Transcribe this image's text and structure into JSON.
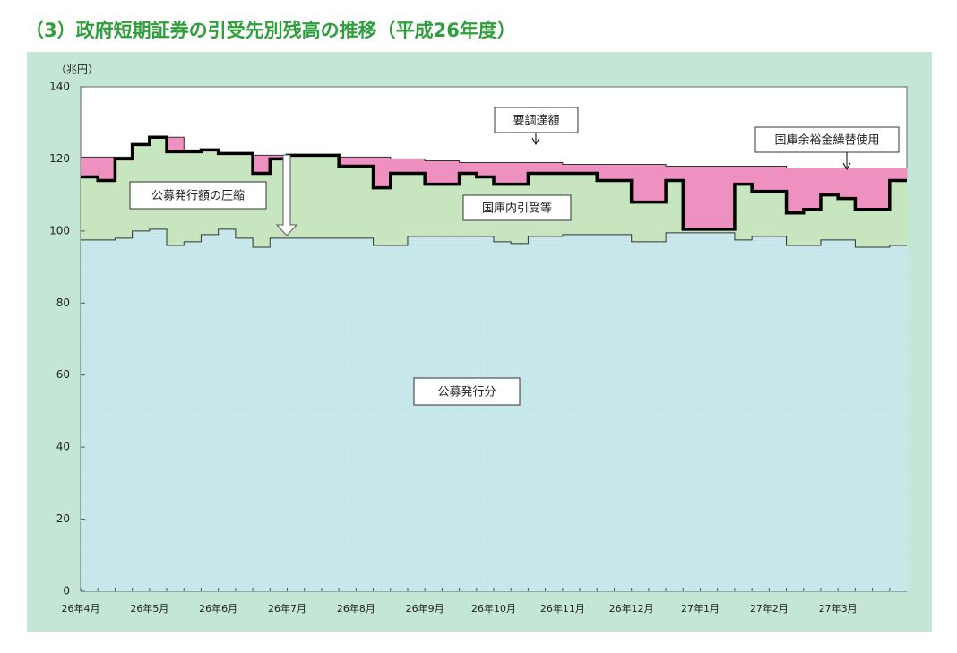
{
  "chart_data": {
    "type": "stacked_step_area",
    "title": "（3）政府短期証券の引受先別残高の推移（平成26年度）",
    "y_unit": "（兆円）",
    "categories": [
      "26年4月",
      null,
      null,
      null,
      "26年5月",
      null,
      null,
      null,
      "26年6月",
      null,
      null,
      null,
      "26年7月",
      null,
      null,
      null,
      "26年8月",
      null,
      null,
      null,
      "26年9月",
      null,
      null,
      null,
      "26年10月",
      null,
      null,
      null,
      "26年11月",
      null,
      null,
      null,
      "26年12月",
      null,
      null,
      null,
      "27年1月",
      null,
      null,
      null,
      "27年2月",
      null,
      null,
      null,
      "27年3月",
      null,
      null,
      null
    ],
    "series": [
      {
        "name": "公募発行分",
        "color": "#c9e8ec",
        "values": [
          97.5,
          97.5,
          98,
          100,
          100.5,
          96,
          97,
          99,
          100.5,
          98,
          95.5,
          98,
          98,
          98,
          98,
          98,
          98,
          96,
          96,
          98.5,
          98.5,
          98.5,
          98.5,
          98.5,
          97,
          96.5,
          98.5,
          98.5,
          99,
          99,
          99,
          99,
          97,
          97,
          99.5,
          99.5,
          99.5,
          99.5,
          97.5,
          98.5,
          98.5,
          96,
          96,
          97.5,
          97.5,
          95.5,
          95.5,
          96
        ]
      },
      {
        "name": "国庫内引受等",
        "color": "#c7e5be",
        "values": [
          17.5,
          16.5,
          22,
          24,
          25.5,
          26,
          25,
          23.5,
          21,
          23.5,
          20.5,
          22,
          23,
          23,
          23,
          20,
          20,
          16,
          20,
          17.5,
          14.5,
          14.5,
          17.5,
          16.5,
          16,
          16.5,
          17.5,
          17.5,
          17,
          17,
          15,
          15,
          11,
          11,
          14.5,
          1,
          1,
          1,
          15.5,
          12.5,
          12.5,
          9,
          10,
          12.5,
          11.5,
          10.5,
          10.5,
          18
        ]
      },
      {
        "name": "国庫余裕金繰替使用",
        "color": "#ee90c0",
        "values": [
          5.5,
          6.5,
          0.5,
          0,
          0,
          4,
          0.5,
          0,
          0,
          0,
          5,
          1,
          0,
          0,
          0,
          2.5,
          2.5,
          8.5,
          4,
          4,
          6.5,
          6.5,
          3,
          4,
          6,
          6,
          3,
          3,
          2.5,
          2.5,
          4.5,
          4.5,
          10.5,
          10.5,
          4,
          17.5,
          17.5,
          17.5,
          5,
          7,
          7,
          12.5,
          11.5,
          7.5,
          8.5,
          11.5,
          11.5,
          3.5
        ]
      }
    ],
    "annotations": [
      "要調達額",
      "公募発行額の圧縮"
    ],
    "ylim": [
      0,
      140
    ],
    "yticks": [
      0,
      20,
      40,
      60,
      80,
      100,
      120,
      140
    ]
  }
}
